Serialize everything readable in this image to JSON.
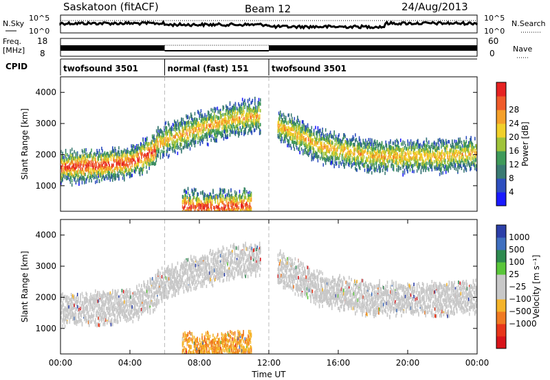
{
  "header": {
    "station": "Saskatoon (fitACF)",
    "beam": "Beam 12",
    "date": "24/Aug/2013"
  },
  "strip_labels": {
    "nsky": "N.Sky",
    "nsearch": "N.Search",
    "nave": "Nave",
    "freq_line1": "Freq.",
    "freq_line2": "[MHz]",
    "cpid": "CPID",
    "noise_ticks_left": [
      "10^5",
      "10^0"
    ],
    "noise_ticks_right": [
      "10^5",
      "10^0"
    ],
    "freq_ticks": [
      "18",
      "8"
    ],
    "nave_ticks": [
      "60",
      "0"
    ]
  },
  "cpid_segments": [
    {
      "label": "twofsound 3501",
      "start_hour": 0,
      "end_hour": 6
    },
    {
      "label": "normal (fast) 151",
      "start_hour": 6,
      "end_hour": 12
    },
    {
      "label": "twofsound 3501",
      "start_hour": 12,
      "end_hour": 24
    }
  ],
  "chart_data": [
    {
      "type": "heatmap",
      "quantity": "Power",
      "ylabel": "Slant Range [km]",
      "xlabel": "",
      "xlim_hours": [
        0,
        24
      ],
      "ylim": [
        180,
        4500
      ],
      "yticks": [
        "1000",
        "2000",
        "3000",
        "4000"
      ],
      "colorbar": {
        "label": "Power [dB]",
        "ticks": [
          "4",
          "8",
          "12",
          "16",
          "20",
          "24",
          "28"
        ],
        "colors": [
          "#1a1aff",
          "#2e4fbf",
          "#3a7a72",
          "#3f9a5a",
          "#9fc33a",
          "#f1d02a",
          "#f5a02a",
          "#ef5b2a",
          "#e62222"
        ]
      },
      "echo_bands": [
        {
          "t": [
            0,
            2,
            4,
            5.5
          ],
          "r": [
            1650,
            1700,
            1800,
            2200
          ],
          "level": "high"
        },
        {
          "t": [
            5.5,
            8,
            10,
            11.5
          ],
          "r": [
            2400,
            2900,
            3200,
            3300
          ],
          "level": "medium"
        },
        {
          "t": [
            7,
            9,
            11
          ],
          "r": [
            400,
            350,
            450
          ],
          "level": "high"
        },
        {
          "t": [
            12.5,
            15,
            18,
            22,
            24
          ],
          "r": [
            3000,
            2300,
            2000,
            2000,
            2100
          ],
          "level": "medium"
        }
      ]
    },
    {
      "type": "heatmap",
      "quantity": "Velocity",
      "ylabel": "Slant Range [km]",
      "xlabel": "Time UT",
      "xlim_hours": [
        0,
        24
      ],
      "ylim": [
        180,
        4500
      ],
      "yticks": [
        "1000",
        "2000",
        "3000",
        "4000"
      ],
      "xticks": [
        "00:00",
        "04:00",
        "08:00",
        "12:00",
        "16:00",
        "20:00",
        "00:00"
      ],
      "colorbar": {
        "label": "Velocity [m s⁻¹]",
        "ticks": [
          "1000",
          "500",
          "100",
          "25",
          "−25",
          "−100",
          "−500",
          "−1000"
        ],
        "colors": [
          "#2c3fa8",
          "#3f6fbf",
          "#2e8a50",
          "#5ac63a",
          "#c8c8c8",
          "#c8c8c8",
          "#f5b42a",
          "#f07a22",
          "#e8361a",
          "#d8141a"
        ]
      },
      "echo_bands": [
        {
          "t": [
            0,
            2,
            4,
            5.5
          ],
          "r": [
            1650,
            1700,
            1800,
            2200
          ],
          "velocity": "ground-scatter"
        },
        {
          "t": [
            5.5,
            8,
            10,
            11.5
          ],
          "r": [
            2400,
            2900,
            3200,
            3300
          ],
          "velocity": "ground-scatter"
        },
        {
          "t": [
            7,
            9,
            11
          ],
          "r": [
            400,
            350,
            450
          ],
          "velocity": "-100"
        },
        {
          "t": [
            12.5,
            15,
            18,
            22,
            24
          ],
          "r": [
            3000,
            2300,
            2000,
            2000,
            2100
          ],
          "velocity": "ground-scatter"
        }
      ]
    }
  ]
}
